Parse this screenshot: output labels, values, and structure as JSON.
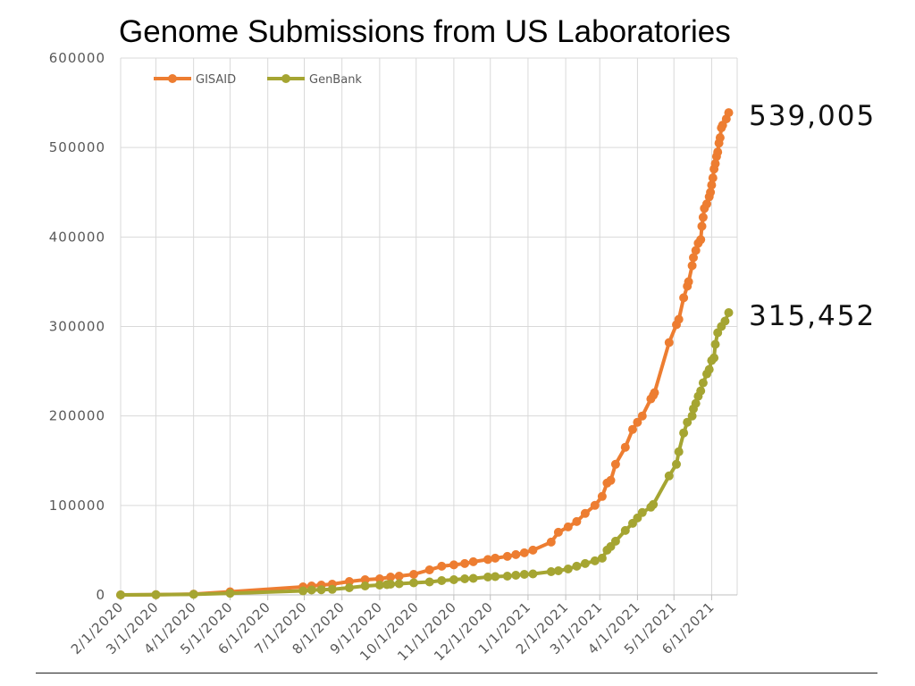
{
  "chart_data": {
    "type": "line",
    "title": "Genome Submissions from US Laboratories",
    "ylim": [
      0,
      600000
    ],
    "y_ticks": [
      0,
      100000,
      200000,
      300000,
      400000,
      500000,
      600000
    ],
    "x_ticks": [
      "2/1/2020",
      "3/1/2020",
      "4/1/2020",
      "5/1/2020",
      "6/1/2020",
      "7/1/2020",
      "8/1/2020",
      "9/1/2020",
      "10/1/2020",
      "11/1/2020",
      "12/1/2020",
      "1/1/2021",
      "2/1/2021",
      "3/1/2021",
      "4/1/2021",
      "5/1/2021",
      "6/1/2021"
    ],
    "x_range": [
      "2020-02-01",
      "2021-06-10"
    ],
    "grid": "vertical",
    "legend_position": "top-left",
    "series": [
      {
        "name": "GISAID",
        "color": "#ED7D31",
        "end_label": "539,005",
        "points": [
          [
            "2020-02-01",
            0
          ],
          [
            "2020-03-01",
            200
          ],
          [
            "2020-04-01",
            900
          ],
          [
            "2020-05-01",
            3500
          ],
          [
            "2020-06-30",
            9000
          ],
          [
            "2020-07-07",
            10000
          ],
          [
            "2020-07-15",
            11000
          ],
          [
            "2020-07-24",
            12000
          ],
          [
            "2020-08-07",
            15000
          ],
          [
            "2020-08-20",
            17000
          ],
          [
            "2020-09-01",
            18000
          ],
          [
            "2020-09-10",
            20000
          ],
          [
            "2020-09-17",
            21000
          ],
          [
            "2020-09-29",
            23000
          ],
          [
            "2020-10-12",
            28000
          ],
          [
            "2020-10-22",
            32000
          ],
          [
            "2020-11-01",
            33500
          ],
          [
            "2020-11-10",
            35000
          ],
          [
            "2020-11-17",
            37000
          ],
          [
            "2020-11-29",
            39500
          ],
          [
            "2020-12-05",
            41000
          ],
          [
            "2020-12-15",
            43000
          ],
          [
            "2020-12-22",
            45000
          ],
          [
            "2020-12-29",
            47000
          ],
          [
            "2021-01-05",
            50000
          ],
          [
            "2021-01-20",
            59000
          ],
          [
            "2021-01-26",
            70000
          ],
          [
            "2021-02-03",
            76000
          ],
          [
            "2021-02-10",
            82000
          ],
          [
            "2021-02-17",
            91000
          ],
          [
            "2021-02-25",
            100000
          ],
          [
            "2021-03-03",
            110000
          ],
          [
            "2021-03-07",
            125000
          ],
          [
            "2021-03-10",
            128000
          ],
          [
            "2021-03-14",
            146000
          ],
          [
            "2021-03-22",
            165000
          ],
          [
            "2021-03-28",
            185000
          ],
          [
            "2021-04-01",
            193000
          ],
          [
            "2021-04-05",
            200000
          ],
          [
            "2021-04-12",
            219000
          ],
          [
            "2021-04-14",
            223000
          ],
          [
            "2021-04-15",
            226000
          ],
          [
            "2021-04-27",
            282000
          ],
          [
            "2021-05-03",
            302000
          ],
          [
            "2021-05-05",
            308000
          ],
          [
            "2021-05-09",
            332000
          ],
          [
            "2021-05-12",
            345000
          ],
          [
            "2021-05-13",
            350000
          ],
          [
            "2021-05-16",
            368000
          ],
          [
            "2021-05-17",
            377000
          ],
          [
            "2021-05-19",
            385000
          ],
          [
            "2021-05-21",
            393000
          ],
          [
            "2021-05-23",
            397000
          ],
          [
            "2021-05-24",
            412000
          ],
          [
            "2021-05-25",
            422000
          ],
          [
            "2021-05-26",
            432000
          ],
          [
            "2021-05-28",
            437000
          ],
          [
            "2021-05-30",
            445000
          ],
          [
            "2021-05-31",
            450000
          ],
          [
            "2021-06-01",
            458000
          ],
          [
            "2021-06-02",
            466000
          ],
          [
            "2021-06-03",
            476000
          ],
          [
            "2021-06-04",
            482000
          ],
          [
            "2021-06-05",
            490000
          ],
          [
            "2021-06-06",
            495000
          ],
          [
            "2021-06-07",
            505000
          ],
          [
            "2021-06-08",
            511000
          ],
          [
            "2021-06-09",
            522000
          ],
          [
            "2021-06-10",
            525000
          ],
          [
            "2021-06-13",
            532000
          ],
          [
            "2021-06-15",
            539005
          ]
        ]
      },
      {
        "name": "GenBank",
        "color": "#A5A532",
        "end_label": "315,452",
        "points": [
          [
            "2020-02-01",
            0
          ],
          [
            "2020-03-01",
            200
          ],
          [
            "2020-04-01",
            600
          ],
          [
            "2020-05-01",
            1800
          ],
          [
            "2020-06-30",
            4500
          ],
          [
            "2020-07-07",
            5500
          ],
          [
            "2020-07-15",
            5800
          ],
          [
            "2020-07-24",
            6200
          ],
          [
            "2020-08-07",
            8000
          ],
          [
            "2020-08-20",
            10000
          ],
          [
            "2020-09-01",
            11000
          ],
          [
            "2020-09-07",
            11500
          ],
          [
            "2020-09-10",
            12000
          ],
          [
            "2020-09-17",
            12500
          ],
          [
            "2020-09-29",
            13500
          ],
          [
            "2020-10-12",
            14500
          ],
          [
            "2020-10-22",
            16000
          ],
          [
            "2020-11-01",
            17000
          ],
          [
            "2020-11-10",
            18000
          ],
          [
            "2020-11-17",
            18500
          ],
          [
            "2020-11-29",
            20000
          ],
          [
            "2020-12-05",
            20500
          ],
          [
            "2020-12-15",
            21000
          ],
          [
            "2020-12-22",
            22000
          ],
          [
            "2020-12-29",
            23000
          ],
          [
            "2021-01-05",
            23500
          ],
          [
            "2021-01-20",
            26000
          ],
          [
            "2021-01-26",
            27000
          ],
          [
            "2021-02-03",
            29000
          ],
          [
            "2021-02-10",
            32000
          ],
          [
            "2021-02-17",
            35000
          ],
          [
            "2021-02-25",
            38000
          ],
          [
            "2021-03-03",
            41000
          ],
          [
            "2021-03-07",
            50000
          ],
          [
            "2021-03-10",
            54000
          ],
          [
            "2021-03-14",
            60000
          ],
          [
            "2021-03-22",
            72000
          ],
          [
            "2021-03-28",
            80000
          ],
          [
            "2021-04-01",
            86000
          ],
          [
            "2021-04-05",
            92000
          ],
          [
            "2021-04-12",
            98000
          ],
          [
            "2021-04-14",
            101000
          ],
          [
            "2021-04-27",
            133000
          ],
          [
            "2021-05-03",
            146000
          ],
          [
            "2021-05-05",
            160000
          ],
          [
            "2021-05-09",
            181000
          ],
          [
            "2021-05-12",
            193000
          ],
          [
            "2021-05-16",
            200000
          ],
          [
            "2021-05-17",
            208000
          ],
          [
            "2021-05-19",
            214000
          ],
          [
            "2021-05-21",
            222000
          ],
          [
            "2021-05-23",
            228000
          ],
          [
            "2021-05-25",
            237000
          ],
          [
            "2021-05-28",
            247000
          ],
          [
            "2021-05-30",
            252000
          ],
          [
            "2021-06-01",
            262000
          ],
          [
            "2021-06-03",
            265000
          ],
          [
            "2021-06-04",
            280000
          ],
          [
            "2021-06-06",
            293000
          ],
          [
            "2021-06-09",
            300000
          ],
          [
            "2021-06-12",
            306000
          ],
          [
            "2021-06-15",
            315452
          ]
        ]
      }
    ]
  }
}
